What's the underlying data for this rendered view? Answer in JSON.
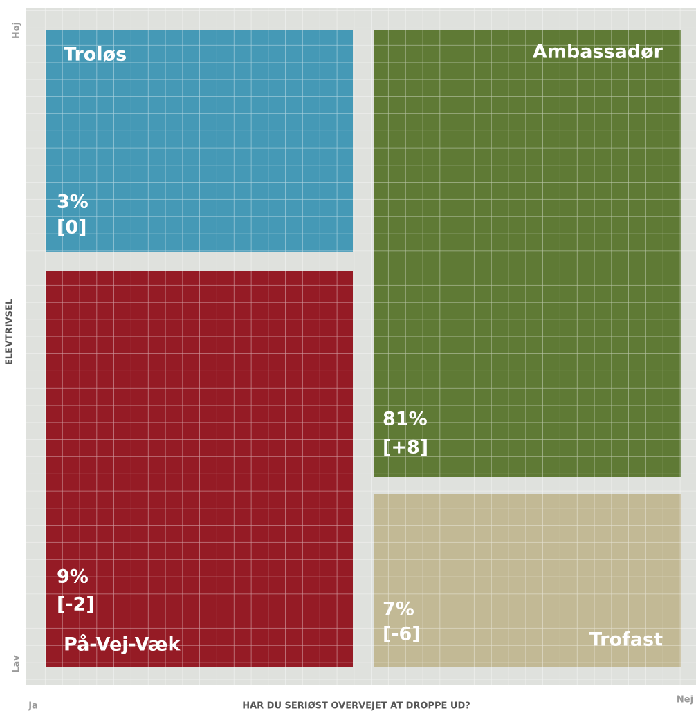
{
  "axes": {
    "y_label": "ELEVTRIVSEL",
    "y_high": "Høj",
    "y_low": "Lav",
    "x_label": "HAR DU SERIØST OVERVEJET AT DROPPE UD?",
    "x_left": "Ja",
    "x_right": "Nej"
  },
  "quadrants": [
    {
      "name": "Troløs",
      "share": "3%",
      "change": "[0]"
    },
    {
      "name": "Ambassadør",
      "share": "81%",
      "change": "[+8]"
    },
    {
      "name": "På-Vej-Væk",
      "share": "9%",
      "change": "[-2]"
    },
    {
      "name": "Trofast",
      "share": "7%",
      "change": "[-6]"
    }
  ]
}
